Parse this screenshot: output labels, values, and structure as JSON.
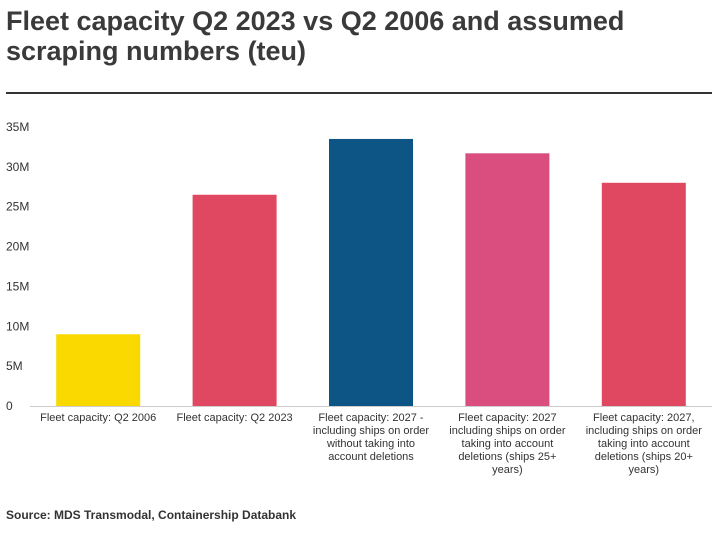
{
  "title": "Fleet capacity Q2 2023 vs Q2 2006 and assumed scraping numbers (teu)",
  "source": "Source: MDS Transmodal, Containership Databank",
  "chart_data": {
    "type": "bar",
    "title": "Fleet capacity Q2 2023 vs Q2 2006 and assumed scraping numbers (teu)",
    "xlabel": "",
    "ylabel": "",
    "ylim": [
      0,
      35000000
    ],
    "yticks": [
      "0",
      "5M",
      "10M",
      "15M",
      "20M",
      "25M",
      "30M",
      "35M"
    ],
    "ytick_values": [
      0,
      5000000,
      10000000,
      15000000,
      20000000,
      25000000,
      30000000,
      35000000
    ],
    "grid": false,
    "legend": "none",
    "categories": [
      "Fleet capacity: Q2 2006",
      "Fleet capacity: Q2 2023",
      "Fleet capacity: 2027 - including ships on order without taking into account deletions",
      "Fleet capacity: 2027 including ships on order taking into account deletions (ships 25+ years)",
      "Fleet capacity: 2027, including ships on order taking into account deletions (ships 20+ years)"
    ],
    "category_lines": [
      [
        "Fleet capacity: Q2 2006"
      ],
      [
        "Fleet capacity: Q2 2023"
      ],
      [
        "Fleet capacity: 2027 -",
        "including ships on order",
        "without taking into",
        "account deletions"
      ],
      [
        "Fleet capacity: 2027",
        "including ships on order",
        "taking into account",
        "deletions (ships 25+",
        "years)"
      ],
      [
        "Fleet capacity: 2027,",
        "including ships on order",
        "taking into account",
        "deletions (ships 20+",
        "years)"
      ]
    ],
    "values": [
      9000000,
      26500000,
      33500000,
      31700000,
      28000000
    ],
    "colors": [
      "#f9d900",
      "#e04862",
      "#0d5585",
      "#d94e7e",
      "#e04862"
    ]
  }
}
